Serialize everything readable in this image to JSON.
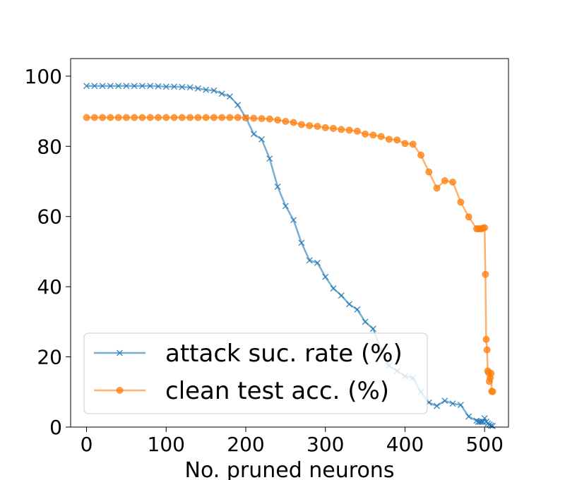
{
  "chart_data": {
    "type": "line",
    "title": "",
    "xlabel": "No. pruned neurons",
    "ylabel": "",
    "xlim": [
      -20,
      530
    ],
    "ylim": [
      0,
      105
    ],
    "xticks": [
      0,
      100,
      200,
      300,
      400,
      500
    ],
    "yticks": [
      0,
      20,
      40,
      60,
      80,
      100
    ],
    "grid": false,
    "legend_position": "lower-left",
    "series": [
      {
        "name": "attack suc. rate (%)",
        "color": "#1f77b4",
        "marker": "x",
        "x": [
          0,
          10,
          20,
          30,
          40,
          50,
          60,
          70,
          80,
          90,
          100,
          110,
          120,
          130,
          140,
          150,
          160,
          170,
          180,
          190,
          200,
          210,
          220,
          230,
          240,
          250,
          260,
          270,
          280,
          290,
          300,
          310,
          320,
          330,
          340,
          350,
          360,
          370,
          380,
          390,
          400,
          410,
          420,
          430,
          440,
          450,
          460,
          470,
          480,
          490,
          492,
          494,
          496,
          498,
          500,
          502,
          504,
          506,
          508,
          510
        ],
        "y": [
          97.2,
          97.2,
          97.2,
          97.2,
          97.2,
          97.2,
          97.2,
          97.2,
          97.2,
          97.1,
          97.0,
          97.0,
          96.9,
          96.8,
          96.5,
          96.1,
          95.9,
          95.0,
          94.2,
          91.8,
          88.2,
          83.5,
          82.0,
          76.5,
          68.5,
          63.0,
          59.0,
          52.5,
          47.5,
          46.8,
          42.8,
          39.5,
          37.5,
          35.0,
          33.5,
          30.0,
          28.0,
          22.0,
          17.5,
          16.0,
          14.5,
          14.0,
          10.0,
          7.0,
          6.0,
          7.5,
          6.7,
          6.3,
          3.0,
          1.8,
          1.5,
          1.5,
          1.5,
          1.5,
          2.5,
          1.5,
          1.0,
          0.7,
          0.4,
          0.3
        ]
      },
      {
        "name": "clean test acc. (%)",
        "color": "#ff7f0e",
        "marker": "o",
        "x": [
          0,
          10,
          20,
          30,
          40,
          50,
          60,
          70,
          80,
          90,
          100,
          110,
          120,
          130,
          140,
          150,
          160,
          170,
          180,
          190,
          200,
          210,
          220,
          230,
          240,
          250,
          260,
          270,
          280,
          290,
          300,
          310,
          320,
          330,
          340,
          350,
          360,
          370,
          380,
          390,
          400,
          410,
          420,
          430,
          440,
          450,
          460,
          470,
          480,
          490,
          492,
          494,
          496,
          498,
          500,
          501,
          502,
          503,
          504,
          505,
          506,
          507,
          508,
          509,
          510
        ],
        "y": [
          88.2,
          88.2,
          88.2,
          88.2,
          88.2,
          88.2,
          88.2,
          88.2,
          88.2,
          88.2,
          88.2,
          88.2,
          88.2,
          88.2,
          88.2,
          88.2,
          88.2,
          88.2,
          88.2,
          88.2,
          88.1,
          88.0,
          87.9,
          87.8,
          87.5,
          87.1,
          86.8,
          86.2,
          85.9,
          85.7,
          85.3,
          85.1,
          84.8,
          84.6,
          84.3,
          83.5,
          83.2,
          82.8,
          82.0,
          81.8,
          80.8,
          80.6,
          77.5,
          72.7,
          68.1,
          70.2,
          69.8,
          64.1,
          59.9,
          56.5,
          56.5,
          56.5,
          56.5,
          56.7,
          56.8,
          43.5,
          25.0,
          22.0,
          16.0,
          15.5,
          13.0,
          14.0,
          15.3,
          10.2,
          10.1
        ]
      }
    ]
  }
}
